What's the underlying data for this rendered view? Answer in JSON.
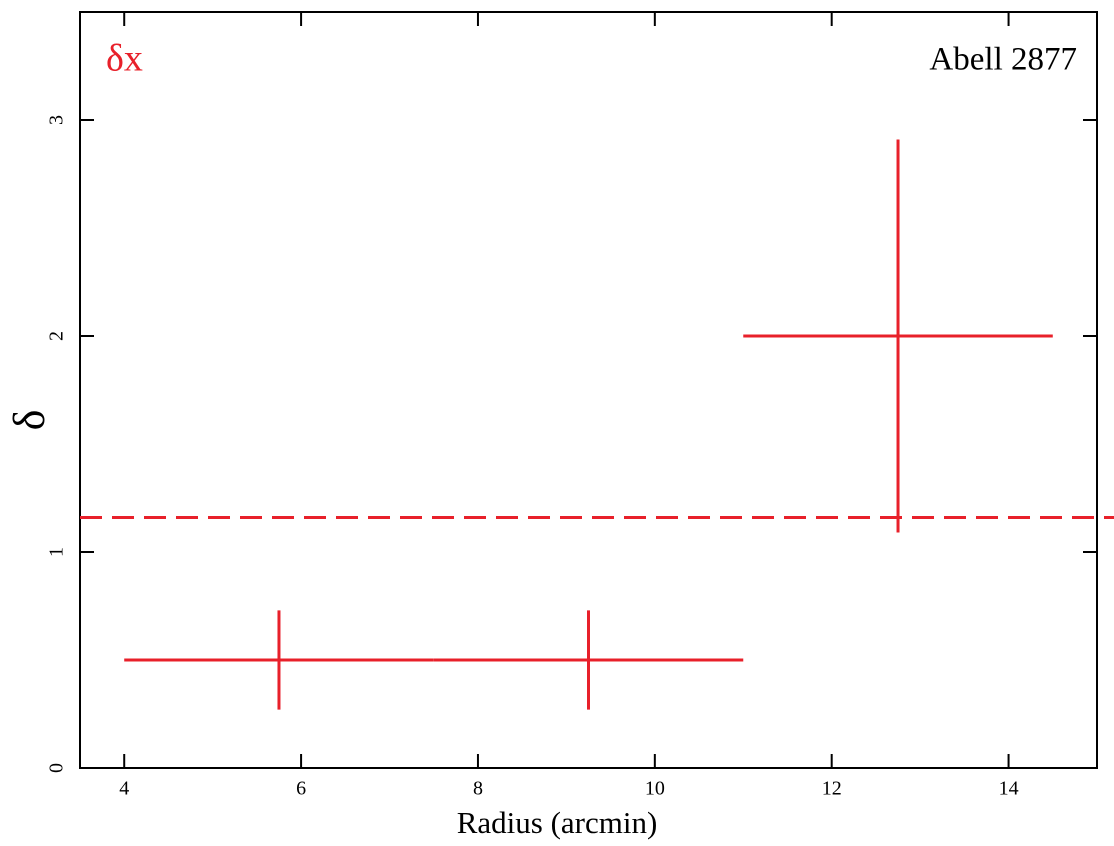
{
  "chart_data": {
    "type": "errorbar",
    "x_label": "Radius (arcmin)",
    "y_label": "δ",
    "annotations": [
      {
        "text": "δx",
        "color": "#e8202a"
      },
      {
        "text": "Abell 2877",
        "color": "#000000"
      }
    ],
    "series": [
      {
        "color": "#e8202a",
        "x": [
          5.75,
          9.25,
          12.75
        ],
        "xerr": [
          1.75,
          1.75,
          1.75
        ],
        "values": [
          0.5,
          0.5,
          2.0
        ],
        "yerr": [
          0.23,
          0.23,
          0.91
        ]
      }
    ],
    "hline": {
      "value": 1.16,
      "color": "#e8202a",
      "dashed": true
    },
    "xlim": [
      3.5,
      15
    ],
    "xticks": [
      4,
      6,
      8,
      10,
      12,
      14
    ],
    "ylim": [
      0,
      3.5
    ],
    "yticks": [
      0,
      1,
      2,
      3
    ]
  }
}
